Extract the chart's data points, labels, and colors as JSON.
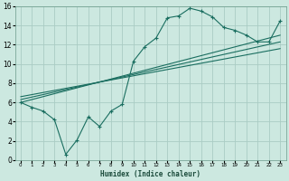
{
  "xlabel": "Humidex (Indice chaleur)",
  "ylabel": "",
  "bg_color": "#cce8e0",
  "grid_color": "#aaccc4",
  "line_color": "#1a6e60",
  "xlim": [
    -0.5,
    23.5
  ],
  "ylim": [
    0,
    16
  ],
  "xticks": [
    0,
    1,
    2,
    3,
    4,
    5,
    6,
    7,
    8,
    9,
    10,
    11,
    12,
    13,
    14,
    15,
    16,
    17,
    18,
    19,
    20,
    21,
    22,
    23
  ],
  "yticks": [
    0,
    2,
    4,
    6,
    8,
    10,
    12,
    14,
    16
  ],
  "scatter_x": [
    0,
    1,
    2,
    3,
    4,
    5,
    6,
    7,
    8,
    9,
    10,
    11,
    12,
    13,
    14,
    15,
    16,
    17,
    18,
    19,
    20,
    21,
    22,
    23
  ],
  "scatter_y": [
    6.0,
    5.5,
    5.1,
    4.2,
    0.6,
    2.1,
    4.5,
    3.5,
    5.1,
    5.8,
    10.3,
    11.8,
    12.7,
    14.8,
    15.0,
    15.8,
    15.5,
    14.9,
    13.8,
    13.5,
    13.0,
    12.3,
    12.3,
    14.5
  ],
  "reg_lines": [
    {
      "x": [
        0,
        23
      ],
      "y": [
        6.0,
        13.0
      ]
    },
    {
      "x": [
        0,
        23
      ],
      "y": [
        6.3,
        12.3
      ]
    },
    {
      "x": [
        0,
        23
      ],
      "y": [
        6.6,
        11.6
      ]
    }
  ]
}
